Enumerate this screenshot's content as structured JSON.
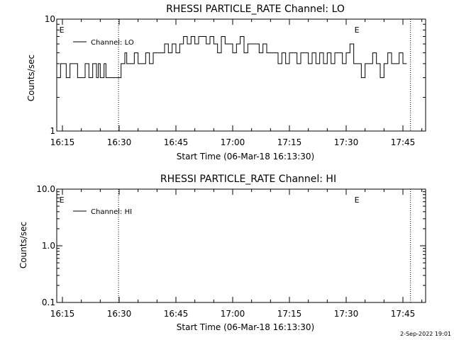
{
  "chart_data": [
    {
      "type": "line",
      "title": "RHESSI PARTICLE_RATE Channel: LO",
      "xlabel": "Start Time (06-Mar-18 16:13:30)",
      "ylabel": "Counts/sec",
      "yscale": "log",
      "ylim": [
        1,
        10
      ],
      "yticks": [
        "1",
        "10"
      ],
      "xticks": [
        "16:15",
        "16:30",
        "16:45",
        "17:00",
        "17:15",
        "17:30",
        "17:45"
      ],
      "xlim": [
        "16:13:30",
        "17:51:00"
      ],
      "legend": "top-left",
      "event_markers": [
        {
          "time": "16:14:00",
          "label": "E"
        },
        {
          "time": "16:29:50",
          "label": ""
        },
        {
          "time": "17:32:00",
          "label": "E"
        },
        {
          "time": "17:47:00",
          "label": ""
        }
      ],
      "series": [
        {
          "name": "Channel: LO",
          "x": [
            "16:14:00",
            "16:14:30",
            "16:15:00",
            "16:16:00",
            "16:17:00",
            "16:18:00",
            "16:19:00",
            "16:20:00",
            "16:20:30",
            "16:21:00",
            "16:22:00",
            "16:23:00",
            "16:24:00",
            "16:24:30",
            "16:25:00",
            "16:26:00",
            "16:26:30",
            "16:27:00",
            "16:28:00",
            "16:29:00",
            "16:29:50",
            "16:30:30",
            "16:31:30",
            "16:32:00",
            "16:33:00",
            "16:34:00",
            "16:35:00",
            "16:36:00",
            "16:37:00",
            "16:38:00",
            "16:39:00",
            "16:40:00",
            "16:41:00",
            "16:42:00",
            "16:43:00",
            "16:44:00",
            "16:45:00",
            "16:46:00",
            "16:47:00",
            "16:48:00",
            "16:49:00",
            "16:50:00",
            "16:51:00",
            "16:52:00",
            "16:53:00",
            "16:54:00",
            "16:55:00",
            "16:56:00",
            "16:57:00",
            "16:58:00",
            "16:59:00",
            "17:00:00",
            "17:01:00",
            "17:02:00",
            "17:03:00",
            "17:04:00",
            "17:05:00",
            "17:06:00",
            "17:07:00",
            "17:08:00",
            "17:09:00",
            "17:10:00",
            "17:11:00",
            "17:12:00",
            "17:13:00",
            "17:14:00",
            "17:15:00",
            "17:16:00",
            "17:17:00",
            "17:18:00",
            "17:19:00",
            "17:20:00",
            "17:21:00",
            "17:22:00",
            "17:23:00",
            "17:24:00",
            "17:25:00",
            "17:26:00",
            "17:27:00",
            "17:28:00",
            "17:29:00",
            "17:30:00",
            "17:31:00",
            "17:32:00",
            "17:33:00",
            "17:34:00",
            "17:35:00",
            "17:36:00",
            "17:37:00",
            "17:38:00",
            "17:39:00",
            "17:40:00",
            "17:41:00",
            "17:42:00",
            "17:43:00",
            "17:44:00",
            "17:45:00",
            "17:46:00"
          ],
          "values": [
            3,
            4,
            4,
            3,
            4,
            4,
            3,
            3,
            3,
            4,
            3,
            4,
            3,
            4,
            3,
            4,
            3,
            3,
            3,
            3,
            3,
            4,
            5,
            4,
            4,
            5,
            4,
            4,
            5,
            4,
            5,
            5,
            5,
            6,
            5,
            6,
            5,
            6,
            7,
            6,
            7,
            6,
            7,
            7,
            6,
            7,
            6,
            5,
            7,
            6,
            6,
            5,
            6,
            7,
            5,
            6,
            6,
            6,
            5,
            6,
            5,
            5,
            5,
            4,
            5,
            4,
            5,
            5,
            4,
            5,
            5,
            4,
            5,
            4,
            5,
            4,
            5,
            4,
            5,
            5,
            4,
            5,
            6,
            4,
            4,
            3,
            4,
            4,
            5,
            4,
            3,
            4,
            5,
            4,
            4,
            5,
            4,
            4
          ]
        }
      ]
    },
    {
      "type": "line",
      "title": "RHESSI PARTICLE_RATE Channel: HI",
      "xlabel": "Start Time (06-Mar-18 16:13:30)",
      "ylabel": "Counts/sec",
      "yscale": "log",
      "ylim": [
        0.1,
        10
      ],
      "yticks": [
        "0.1",
        "1.0",
        "10.0"
      ],
      "xticks": [
        "16:15",
        "16:30",
        "16:45",
        "17:00",
        "17:15",
        "17:30",
        "17:45"
      ],
      "xlim": [
        "16:13:30",
        "17:51:00"
      ],
      "legend": "top-left",
      "event_markers": [
        {
          "time": "16:14:00",
          "label": "E"
        },
        {
          "time": "16:29:50",
          "label": ""
        },
        {
          "time": "17:32:00",
          "label": "E"
        },
        {
          "time": "17:47:00",
          "label": ""
        }
      ],
      "series": [
        {
          "name": "Channel: HI",
          "x": [],
          "values": []
        }
      ]
    }
  ],
  "footer": {
    "timestamp": "2-Sep-2022 19:01"
  }
}
